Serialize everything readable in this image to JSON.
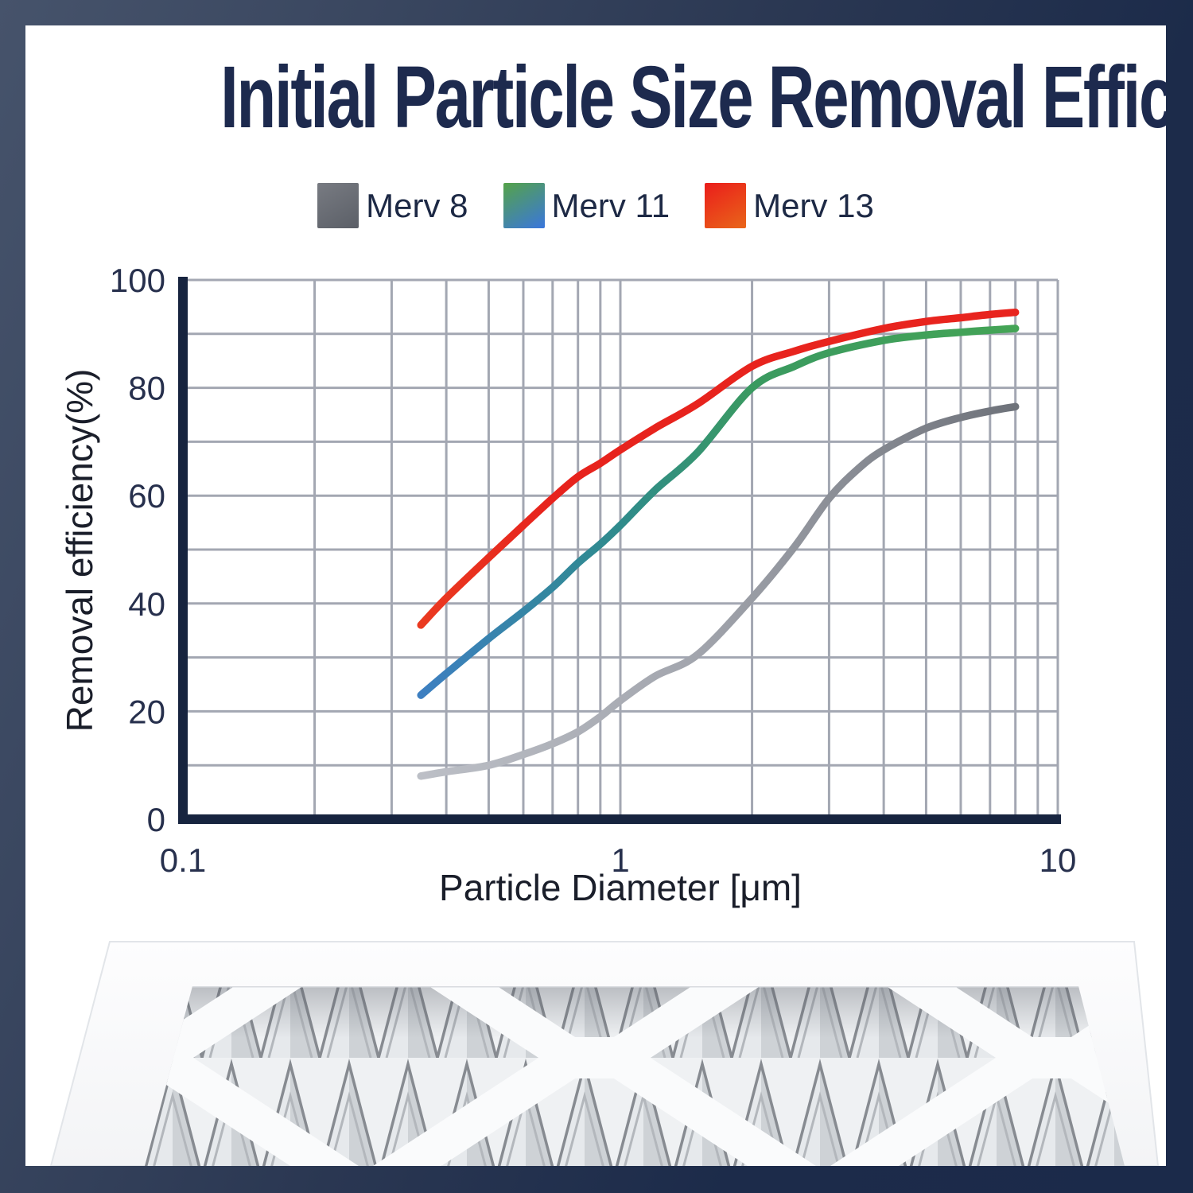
{
  "title": "Initial Particle Size Removal Efficiency",
  "legend": {
    "items": [
      {
        "label": "Merv 8",
        "swatch_from": "#787b82",
        "swatch_to": "#5b5f67"
      },
      {
        "label": "Merv 11",
        "swatch_from": "#55a349",
        "swatch_to": "#3a76dd"
      },
      {
        "label": "Merv 13",
        "swatch_from": "#ea1d1b",
        "swatch_to": "#e9661a"
      }
    ]
  },
  "chart_data": {
    "type": "line",
    "title": "",
    "x_axis": {
      "label": "Particle Diameter [μm]",
      "scale": "log",
      "min": 0.1,
      "max": 10,
      "major_ticks": [
        {
          "value": 0.1,
          "label": "0.1"
        },
        {
          "value": 1,
          "label": "1"
        },
        {
          "value": 10,
          "label": "10"
        }
      ],
      "minor_gridlines": [
        0.2,
        0.3,
        0.4,
        0.5,
        0.6,
        0.7,
        0.8,
        0.9,
        1,
        2,
        3,
        4,
        5,
        6,
        7,
        8,
        9,
        10
      ]
    },
    "y_axis": {
      "label": "Removal efficiency(%)",
      "min": 0,
      "max": 100,
      "grid_step": 10,
      "major_ticks": [
        {
          "value": 0,
          "label": "0"
        },
        {
          "value": 20,
          "label": "20"
        },
        {
          "value": 40,
          "label": "40"
        },
        {
          "value": 60,
          "label": "60"
        },
        {
          "value": 80,
          "label": "80"
        },
        {
          "value": 100,
          "label": "100"
        }
      ]
    },
    "grid_color": "#a3a7b2",
    "axis_color": "#17243f",
    "series": [
      {
        "name": "Merv 8",
        "points": [
          [
            0.35,
            8
          ],
          [
            0.4,
            8.8
          ],
          [
            0.5,
            10
          ],
          [
            0.6,
            12
          ],
          [
            0.7,
            14
          ],
          [
            0.8,
            16.2
          ],
          [
            0.9,
            19
          ],
          [
            1,
            22
          ],
          [
            1.2,
            26.5
          ],
          [
            1.5,
            30.5
          ],
          [
            2,
            41
          ],
          [
            2.5,
            50.5
          ],
          [
            3,
            59.5
          ],
          [
            3.5,
            65
          ],
          [
            4,
            68.5
          ],
          [
            5,
            72.5
          ],
          [
            6,
            74.5
          ],
          [
            7,
            75.7
          ],
          [
            8,
            76.5
          ]
        ],
        "stroke_stops": [
          {
            "offset": 0,
            "color": "#bcbfc6"
          },
          {
            "offset": 0.45,
            "color": "#a3a6ae"
          },
          {
            "offset": 1,
            "color": "#6e727a"
          }
        ]
      },
      {
        "name": "Merv 11",
        "points": [
          [
            0.35,
            23
          ],
          [
            0.4,
            27
          ],
          [
            0.5,
            33.5
          ],
          [
            0.6,
            38.5
          ],
          [
            0.7,
            43
          ],
          [
            0.8,
            47.5
          ],
          [
            0.9,
            51
          ],
          [
            1,
            54.5
          ],
          [
            1.2,
            61
          ],
          [
            1.5,
            68
          ],
          [
            2,
            80
          ],
          [
            2.5,
            84
          ],
          [
            3,
            86.5
          ],
          [
            4,
            88.8
          ],
          [
            5,
            89.8
          ],
          [
            6,
            90.3
          ],
          [
            7,
            90.7
          ],
          [
            8,
            91
          ]
        ],
        "stroke_stops": [
          {
            "offset": 0,
            "color": "#3d7fc1"
          },
          {
            "offset": 0.33,
            "color": "#2f8b8d"
          },
          {
            "offset": 0.56,
            "color": "#3a9a60"
          },
          {
            "offset": 1,
            "color": "#44a456"
          }
        ]
      },
      {
        "name": "Merv 13",
        "points": [
          [
            0.35,
            36
          ],
          [
            0.4,
            41
          ],
          [
            0.5,
            48.5
          ],
          [
            0.6,
            54.5
          ],
          [
            0.7,
            59.5
          ],
          [
            0.8,
            63.5
          ],
          [
            0.9,
            66
          ],
          [
            1,
            68.5
          ],
          [
            1.2,
            72.5
          ],
          [
            1.5,
            77
          ],
          [
            2,
            84
          ],
          [
            2.5,
            86.8
          ],
          [
            3,
            88.6
          ],
          [
            4,
            91
          ],
          [
            5,
            92.3
          ],
          [
            6,
            93
          ],
          [
            7,
            93.6
          ],
          [
            8,
            94
          ]
        ],
        "stroke_stops": [
          {
            "offset": 0,
            "color": "#ea3a20"
          },
          {
            "offset": 0.22,
            "color": "#e7231d"
          },
          {
            "offset": 1,
            "color": "#e8241e"
          }
        ]
      }
    ]
  }
}
